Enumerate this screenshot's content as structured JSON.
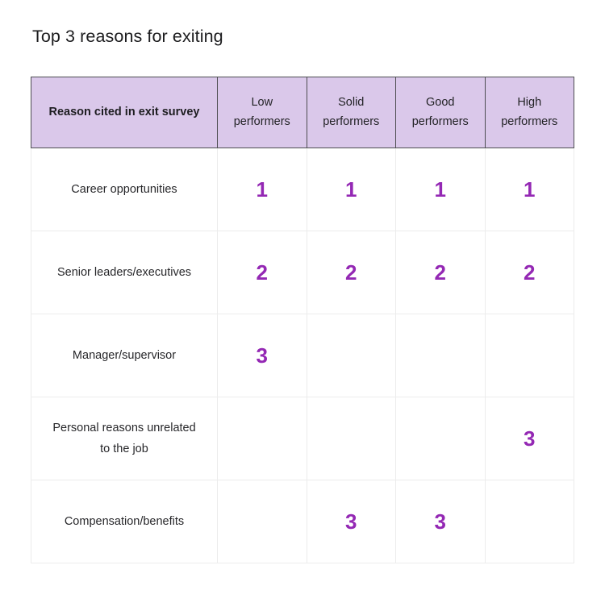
{
  "title": "Top 3 reasons for exiting",
  "colors": {
    "header_bg": "#dac8ea",
    "rank_text": "#9428b4",
    "header_border": "#4e4e52",
    "outer_border": "#77777b",
    "body_grid": "#ececec",
    "title_text": "#1c1c1e"
  },
  "chart_data": {
    "type": "table",
    "title": "Top 3 reasons for exiting",
    "columns": [
      "Reason cited in exit survey",
      "Low performers",
      "Solid performers",
      "Good performers",
      "High performers"
    ],
    "rows": [
      {
        "label": "Career opportunities",
        "values": [
          "1",
          "1",
          "1",
          "1"
        ]
      },
      {
        "label": "Senior leaders/executives",
        "values": [
          "2",
          "2",
          "2",
          "2"
        ]
      },
      {
        "label": "Manager/supervisor",
        "values": [
          "3",
          "",
          "",
          ""
        ]
      },
      {
        "label": "Personal reasons unrelated to the job",
        "values": [
          "",
          "",
          "",
          "3"
        ]
      },
      {
        "label": "Compensation/benefits",
        "values": [
          "",
          "3",
          "3",
          ""
        ]
      }
    ]
  }
}
